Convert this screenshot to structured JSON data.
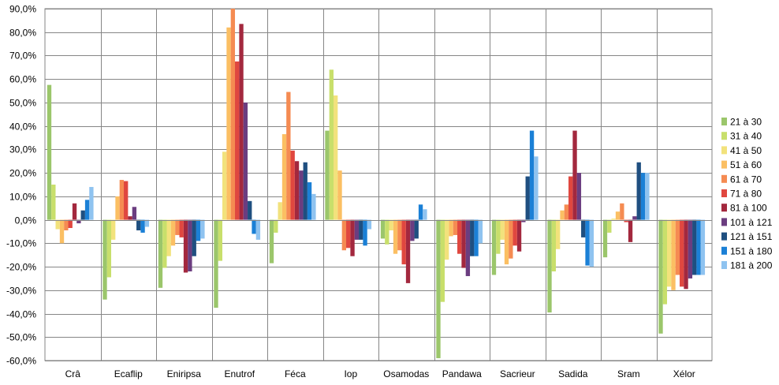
{
  "chart_data": {
    "type": "bar",
    "title": "",
    "xlabel": "",
    "ylabel": "",
    "ylim": [
      -60,
      90
    ],
    "yticks": [
      "-60,0%",
      "-50,0%",
      "-40,0%",
      "-30,0%",
      "-20,0%",
      "-10,0%",
      "0,0%",
      "10,0%",
      "20,0%",
      "30,0%",
      "40,0%",
      "50,0%",
      "60,0%",
      "70,0%",
      "80,0%",
      "90,0%"
    ],
    "grid": true,
    "legend_position": "right",
    "categories": [
      "Crâ",
      "Ecaflip",
      "Eniripsa",
      "Enutrof",
      "Féca",
      "Iop",
      "Osamodas",
      "Pandawa",
      "Sacrieur",
      "Sadida",
      "Sram",
      "Xélor"
    ],
    "series": [
      {
        "name": "21 à 30",
        "color": "#9bc66b",
        "values": [
          57.5,
          -34,
          -29,
          -37.5,
          -18.5,
          38,
          -8,
          -59,
          -23.5,
          -39.5,
          -16,
          -48.5
        ]
      },
      {
        "name": "31 à 40",
        "color": "#c8df6b",
        "values": [
          15,
          -24.5,
          -20.5,
          -17.5,
          -5.5,
          64,
          -10.5,
          -35,
          -14.5,
          -22,
          -5.5,
          -36
        ]
      },
      {
        "name": "41 à 50",
        "color": "#f2e27c",
        "values": [
          -4,
          -8.5,
          -15.5,
          29,
          7.5,
          53,
          -4.5,
          -17,
          -8.5,
          -12.5,
          0.5,
          -28.5
        ]
      },
      {
        "name": "51 à 60",
        "color": "#fbbf63",
        "values": [
          -10,
          10,
          -11,
          82,
          36.5,
          21,
          -14.5,
          -7,
          -19,
          4,
          3.5,
          -30
        ]
      },
      {
        "name": "61 à 70",
        "color": "#f58b52",
        "values": [
          -4.5,
          17,
          -6.5,
          90,
          54.5,
          -13,
          -13,
          -6.5,
          -16.5,
          6.5,
          7,
          -23.5
        ]
      },
      {
        "name": "71 à 80",
        "color": "#e0473f",
        "values": [
          -3.5,
          16.5,
          -7.5,
          67.5,
          29.5,
          -12,
          -19,
          -14.5,
          -11,
          18.5,
          -1,
          -28.5
        ]
      },
      {
        "name": "81 à 100",
        "color": "#a3283e",
        "values": [
          7,
          1.5,
          -22.5,
          83.5,
          25,
          -15.5,
          -27,
          -20.5,
          -13.5,
          38,
          -9.5,
          -29.5
        ]
      },
      {
        "name": "101 à 121",
        "color": "#6b3d80",
        "values": [
          -1.5,
          5.5,
          -22,
          50,
          21,
          -8.5,
          -9,
          -24,
          -1,
          20,
          1.5,
          -25
        ]
      },
      {
        "name": "121 à 151",
        "color": "#1f4f80",
        "values": [
          4,
          -4.5,
          -15.5,
          8,
          24.5,
          -8.5,
          -8,
          -15.5,
          18.5,
          -7.5,
          24.5,
          -23.5
        ]
      },
      {
        "name": "151 à 180",
        "color": "#1b80d6",
        "values": [
          8.5,
          -5.5,
          -9,
          -6,
          16,
          -11,
          6.5,
          -15.5,
          38,
          -19.5,
          20,
          -23.5
        ]
      },
      {
        "name": "181 à 200",
        "color": "#8fc3f0",
        "values": [
          14,
          -3,
          -8,
          -8.5,
          11,
          -4,
          4.5,
          -10,
          27,
          -20,
          20,
          -23.5
        ]
      }
    ]
  }
}
